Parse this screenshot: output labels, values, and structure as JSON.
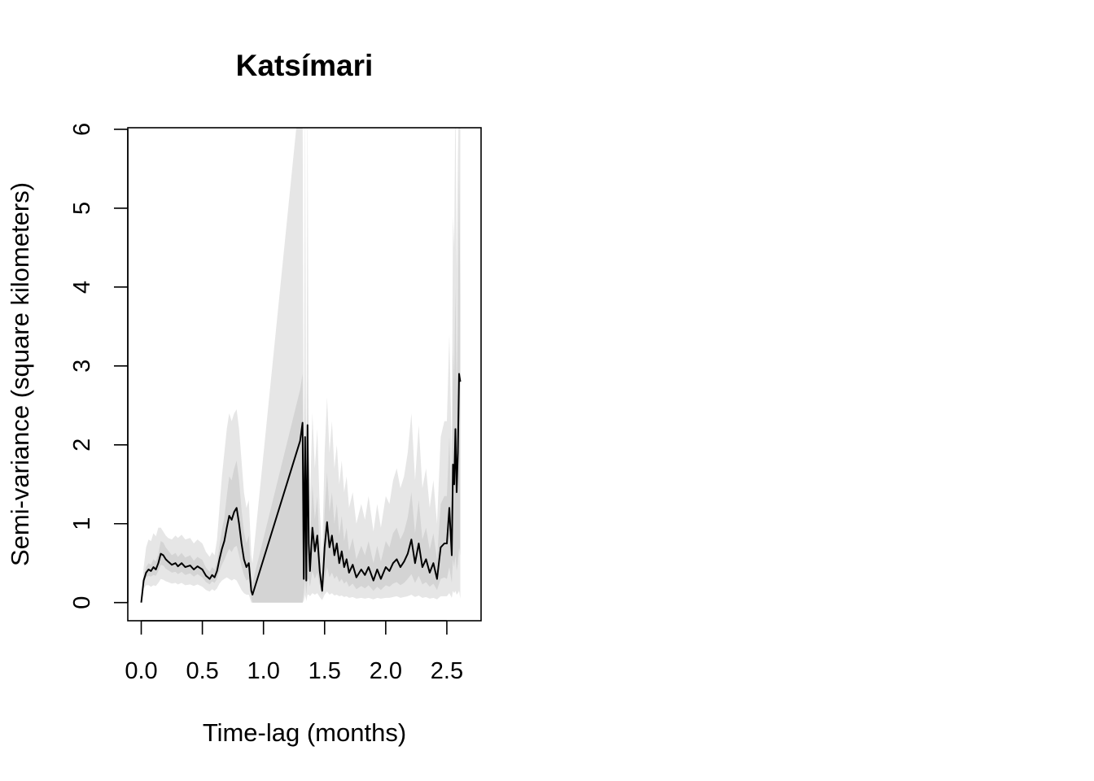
{
  "chart_data": {
    "type": "line",
    "title": "Katsímari",
    "xlabel": "Time-lag (months)",
    "ylabel": "Semi-variance (square kilometers)",
    "xlim": [
      -0.11,
      2.78
    ],
    "ylim": [
      -0.23,
      6.02
    ],
    "xticks": [
      0.0,
      0.5,
      1.0,
      1.5,
      2.0,
      2.5
    ],
    "xtick_labels": [
      "0.0",
      "0.5",
      "1.0",
      "1.5",
      "2.0",
      "2.5"
    ],
    "yticks": [
      0,
      1,
      2,
      3,
      4,
      5,
      6
    ],
    "ytick_labels": [
      "0",
      "1",
      "2",
      "3",
      "4",
      "5",
      "6"
    ],
    "grid": false,
    "legend": "none",
    "colors": {
      "line": "#000000",
      "inner_band": "#d4d4d4",
      "outer_band": "#e6e6e6"
    },
    "series": [
      {
        "x": [
          0.0,
          0.02,
          0.04,
          0.06,
          0.08,
          0.1,
          0.12,
          0.14,
          0.16,
          0.18,
          0.2,
          0.22,
          0.25,
          0.28,
          0.3,
          0.33,
          0.36,
          0.4,
          0.43,
          0.46,
          0.5,
          0.53,
          0.56,
          0.58,
          0.6,
          0.62,
          0.64,
          0.66,
          0.68,
          0.7,
          0.72,
          0.74,
          0.76,
          0.78,
          0.8,
          0.82,
          0.84,
          0.86,
          0.88,
          0.9,
          0.91,
          1.3,
          1.32,
          1.33,
          1.34,
          1.35,
          1.36,
          1.37,
          1.38,
          1.4,
          1.42,
          1.44,
          1.46,
          1.48,
          1.5,
          1.52,
          1.54,
          1.56,
          1.58,
          1.6,
          1.62,
          1.64,
          1.66,
          1.68,
          1.7,
          1.73,
          1.76,
          1.8,
          1.83,
          1.86,
          1.9,
          1.93,
          1.96,
          2.0,
          2.03,
          2.06,
          2.09,
          2.12,
          2.15,
          2.18,
          2.21,
          2.24,
          2.27,
          2.3,
          2.33,
          2.36,
          2.39,
          2.42,
          2.45,
          2.48,
          2.5,
          2.52,
          2.54,
          2.55,
          2.56,
          2.57,
          2.58,
          2.59,
          2.6,
          2.61
        ],
        "y": [
          0.0,
          0.28,
          0.38,
          0.42,
          0.4,
          0.45,
          0.42,
          0.5,
          0.62,
          0.6,
          0.55,
          0.52,
          0.48,
          0.5,
          0.46,
          0.5,
          0.45,
          0.47,
          0.42,
          0.46,
          0.42,
          0.34,
          0.3,
          0.35,
          0.32,
          0.4,
          0.55,
          0.68,
          0.78,
          0.95,
          1.1,
          1.05,
          1.15,
          1.2,
          1.0,
          0.75,
          0.55,
          0.45,
          0.5,
          0.15,
          0.1,
          2.05,
          2.28,
          0.3,
          2.1,
          0.28,
          2.25,
          0.75,
          0.4,
          0.95,
          0.65,
          0.85,
          0.4,
          0.15,
          0.7,
          1.02,
          0.7,
          0.85,
          0.6,
          0.75,
          0.5,
          0.65,
          0.45,
          0.55,
          0.38,
          0.48,
          0.32,
          0.42,
          0.35,
          0.45,
          0.28,
          0.42,
          0.3,
          0.45,
          0.4,
          0.5,
          0.55,
          0.45,
          0.52,
          0.62,
          0.8,
          0.5,
          0.75,
          0.45,
          0.55,
          0.38,
          0.5,
          0.3,
          0.7,
          0.75,
          0.75,
          1.2,
          0.6,
          1.75,
          1.5,
          2.2,
          1.4,
          1.9,
          2.9,
          2.8
        ],
        "inner_low": [
          0.0,
          0.24,
          0.32,
          0.34,
          0.33,
          0.35,
          0.34,
          0.4,
          0.48,
          0.47,
          0.43,
          0.41,
          0.38,
          0.39,
          0.36,
          0.39,
          0.35,
          0.37,
          0.33,
          0.36,
          0.32,
          0.26,
          0.23,
          0.27,
          0.25,
          0.3,
          0.4,
          0.48,
          0.54,
          0.62,
          0.68,
          0.64,
          0.7,
          0.72,
          0.6,
          0.46,
          0.35,
          0.28,
          0.3,
          0.05,
          0.0,
          0.0,
          0.0,
          0.12,
          0.3,
          0.1,
          0.3,
          0.3,
          0.2,
          0.4,
          0.3,
          0.38,
          0.22,
          0.1,
          0.3,
          0.45,
          0.32,
          0.38,
          0.3,
          0.34,
          0.26,
          0.3,
          0.24,
          0.27,
          0.2,
          0.24,
          0.17,
          0.21,
          0.18,
          0.22,
          0.15,
          0.2,
          0.16,
          0.22,
          0.2,
          0.24,
          0.26,
          0.22,
          0.25,
          0.3,
          0.36,
          0.25,
          0.34,
          0.23,
          0.26,
          0.2,
          0.24,
          0.16,
          0.3,
          0.32,
          0.3,
          0.45,
          0.25,
          0.55,
          0.45,
          0.6,
          0.4,
          0.5,
          0.7,
          0.6
        ],
        "inner_high": [
          0.0,
          0.33,
          0.45,
          0.5,
          0.48,
          0.55,
          0.52,
          0.62,
          0.78,
          0.76,
          0.7,
          0.66,
          0.6,
          0.63,
          0.58,
          0.63,
          0.57,
          0.6,
          0.53,
          0.58,
          0.54,
          0.44,
          0.39,
          0.45,
          0.42,
          0.52,
          0.72,
          0.92,
          1.08,
          1.35,
          1.6,
          1.55,
          1.7,
          1.8,
          1.55,
          1.18,
          0.9,
          0.75,
          0.85,
          0.3,
          0.25,
          2.7,
          2.9,
          0.6,
          2.7,
          0.55,
          2.9,
          1.2,
          0.7,
          1.5,
          1.05,
          1.35,
          0.65,
          0.28,
          1.15,
          1.65,
          1.15,
          1.4,
          1.0,
          1.25,
          0.85,
          1.1,
          0.78,
          0.95,
          0.65,
          0.82,
          0.55,
          0.72,
          0.6,
          0.78,
          0.5,
          0.72,
          0.52,
          0.78,
          0.7,
          0.88,
          0.95,
          0.8,
          0.9,
          1.08,
          1.4,
          0.88,
          1.3,
          0.8,
          0.95,
          0.67,
          0.88,
          0.55,
          1.25,
          1.35,
          1.35,
          2.1,
          1.1,
          3.2,
          2.8,
          4.0,
          2.6,
          3.5,
          5.5,
          3.85
        ],
        "outer_low": [
          0.0,
          0.18,
          0.22,
          0.22,
          0.2,
          0.22,
          0.21,
          0.25,
          0.3,
          0.29,
          0.27,
          0.26,
          0.24,
          0.25,
          0.23,
          0.25,
          0.22,
          0.23,
          0.21,
          0.23,
          0.2,
          0.16,
          0.14,
          0.17,
          0.15,
          0.18,
          0.24,
          0.28,
          0.3,
          0.32,
          0.3,
          0.28,
          0.3,
          0.28,
          0.22,
          0.16,
          0.12,
          0.1,
          0.1,
          0.0,
          0.0,
          0.0,
          0.0,
          0.02,
          0.1,
          0.02,
          0.1,
          0.1,
          0.08,
          0.12,
          0.1,
          0.12,
          0.07,
          0.03,
          0.1,
          0.14,
          0.1,
          0.12,
          0.09,
          0.1,
          0.08,
          0.09,
          0.07,
          0.08,
          0.06,
          0.07,
          0.05,
          0.06,
          0.05,
          0.06,
          0.04,
          0.06,
          0.05,
          0.06,
          0.06,
          0.07,
          0.08,
          0.06,
          0.07,
          0.08,
          0.1,
          0.07,
          0.09,
          0.06,
          0.07,
          0.05,
          0.06,
          0.04,
          0.08,
          0.08,
          0.08,
          0.12,
          0.06,
          0.15,
          0.12,
          0.15,
          0.1,
          0.12,
          0.15,
          0.05
        ],
        "outer_high": [
          0.0,
          0.45,
          0.7,
          0.8,
          0.78,
          0.88,
          0.84,
          0.95,
          0.95,
          0.9,
          0.85,
          0.82,
          0.8,
          0.85,
          0.82,
          0.86,
          0.8,
          0.82,
          0.75,
          0.8,
          0.75,
          0.64,
          0.58,
          0.64,
          0.6,
          0.8,
          1.2,
          1.6,
          1.9,
          2.2,
          2.4,
          2.3,
          2.4,
          2.45,
          2.2,
          1.8,
          1.4,
          1.2,
          1.3,
          0.6,
          0.5,
          6.5,
          6.5,
          1.2,
          6.5,
          1.0,
          6.5,
          2.0,
          1.3,
          2.4,
          1.7,
          2.2,
          1.2,
          0.6,
          1.9,
          2.6,
          1.9,
          2.3,
          1.7,
          2.0,
          1.5,
          1.8,
          1.4,
          1.6,
          1.2,
          1.4,
          1.0,
          1.25,
          1.05,
          1.35,
          0.9,
          1.25,
          0.95,
          1.35,
          1.25,
          1.55,
          1.7,
          1.45,
          1.6,
          1.9,
          2.4,
          1.55,
          2.25,
          1.45,
          1.7,
          1.2,
          1.55,
          1.0,
          2.1,
          2.3,
          2.3,
          3.4,
          1.9,
          4.9,
          4.5,
          6.5,
          4.2,
          5.6,
          6.5,
          6.5
        ]
      }
    ]
  }
}
